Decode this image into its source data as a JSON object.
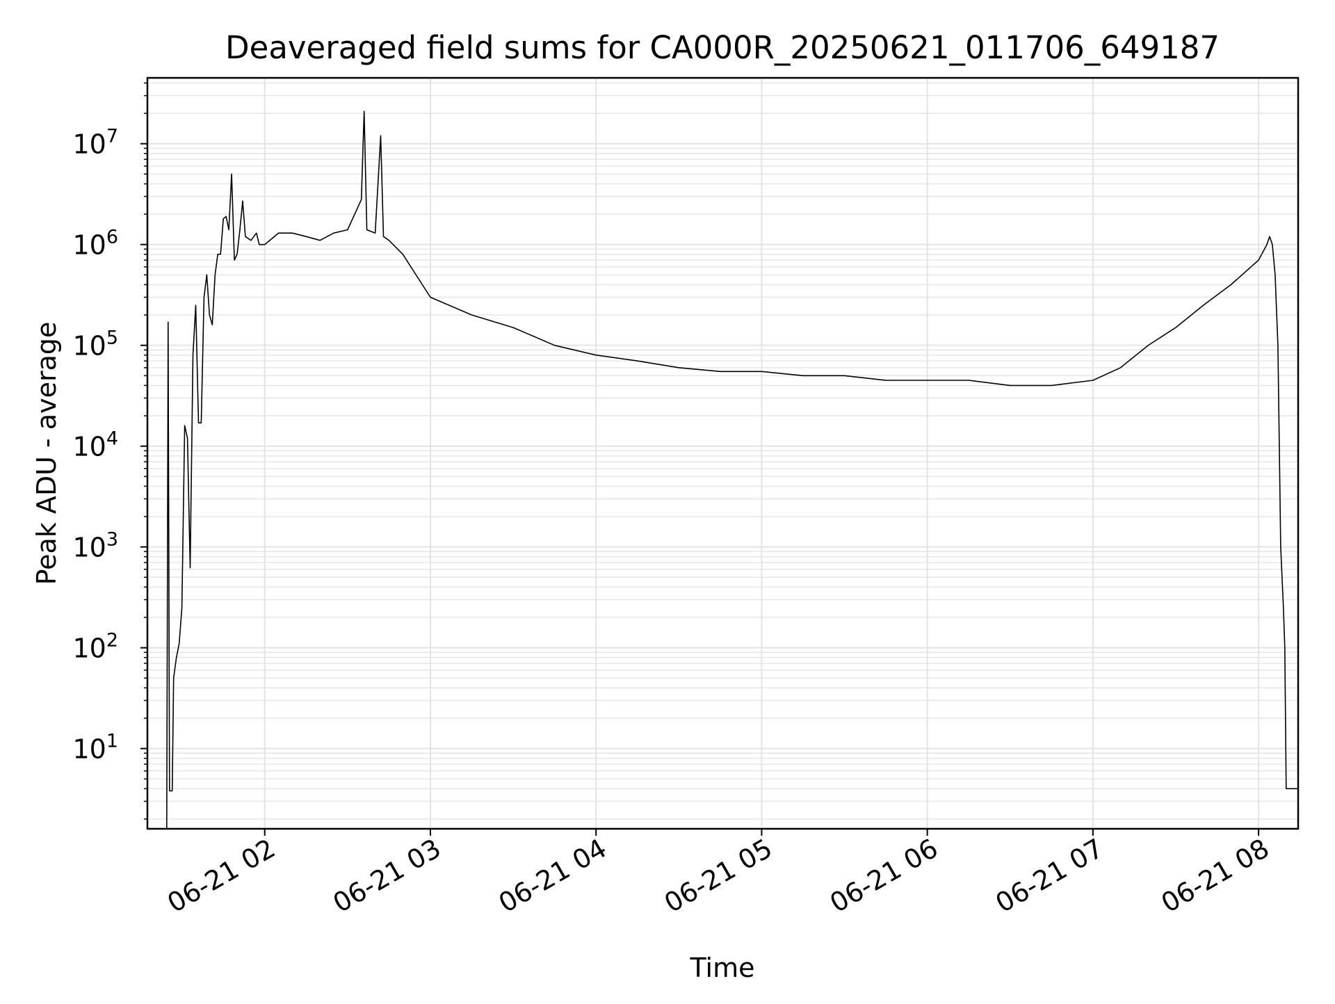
{
  "chart_data": {
    "type": "line",
    "title": "Deaveraged field sums for CA000R_20250621_011706_649187",
    "xlabel": "Time",
    "ylabel": "Peak ADU - average",
    "yscale": "log",
    "ylim": [
      1.6,
      45000000
    ],
    "xlim": [
      "06-21 01:17:30",
      "06-21 08:14:20"
    ],
    "grid": true,
    "line_color": "#000000",
    "x_ticks": [
      {
        "label": "06-21 02",
        "value": "06-21 02:00"
      },
      {
        "label": "06-21 03",
        "value": "06-21 03:00"
      },
      {
        "label": "06-21 04",
        "value": "06-21 04:00"
      },
      {
        "label": "06-21 05",
        "value": "06-21 05:00"
      },
      {
        "label": "06-21 06",
        "value": "06-21 06:00"
      },
      {
        "label": "06-21 07",
        "value": "06-21 07:00"
      },
      {
        "label": "06-21 08",
        "value": "06-21 08:00"
      }
    ],
    "y_ticks": [
      {
        "base": "10",
        "exp": "1",
        "value": 10
      },
      {
        "base": "10",
        "exp": "2",
        "value": 100
      },
      {
        "base": "10",
        "exp": "3",
        "value": 1000
      },
      {
        "base": "10",
        "exp": "4",
        "value": 10000
      },
      {
        "base": "10",
        "exp": "5",
        "value": 100000
      },
      {
        "base": "10",
        "exp": "6",
        "value": 1000000
      },
      {
        "base": "10",
        "exp": "7",
        "value": 10000000
      }
    ],
    "series": [
      {
        "color": "#000000",
        "x": [
          "06-21 01:24:30",
          "06-21 01:25:00",
          "06-21 01:25:30",
          "06-21 01:26:00",
          "06-21 01:26:30",
          "06-21 01:27:00",
          "06-21 01:28:00",
          "06-21 01:29:00",
          "06-21 01:30:00",
          "06-21 01:31:00",
          "06-21 01:32:00",
          "06-21 01:33:00",
          "06-21 01:34:00",
          "06-21 01:35:00",
          "06-21 01:36:00",
          "06-21 01:37:00",
          "06-21 01:38:00",
          "06-21 01:39:00",
          "06-21 01:40:00",
          "06-21 01:41:00",
          "06-21 01:42:00",
          "06-21 01:43:00",
          "06-21 01:44:00",
          "06-21 01:45:00",
          "06-21 01:46:00",
          "06-21 01:47:00",
          "06-21 01:48:00",
          "06-21 01:49:00",
          "06-21 01:50:00",
          "06-21 01:51:00",
          "06-21 01:52:00",
          "06-21 01:53:00",
          "06-21 01:55:00",
          "06-21 01:57:00",
          "06-21 01:58:00",
          "06-21 02:00:00",
          "06-21 02:05:00",
          "06-21 02:10:00",
          "06-21 02:15:00",
          "06-21 02:20:00",
          "06-21 02:25:00",
          "06-21 02:30:00",
          "06-21 02:35:00",
          "06-21 02:36:00",
          "06-21 02:37:00",
          "06-21 02:40:00",
          "06-21 02:42:00",
          "06-21 02:43:00",
          "06-21 02:45:00",
          "06-21 02:50:00",
          "06-21 03:00:00",
          "06-21 03:15:00",
          "06-21 03:30:00",
          "06-21 03:45:00",
          "06-21 04:00:00",
          "06-21 04:15:00",
          "06-21 04:30:00",
          "06-21 04:45:00",
          "06-21 05:00:00",
          "06-21 05:15:00",
          "06-21 05:30:00",
          "06-21 05:45:00",
          "06-21 06:00:00",
          "06-21 06:15:00",
          "06-21 06:30:00",
          "06-21 06:45:00",
          "06-21 07:00:00",
          "06-21 07:10:00",
          "06-21 07:20:00",
          "06-21 07:30:00",
          "06-21 07:40:00",
          "06-21 07:50:00",
          "06-21 08:00:00",
          "06-21 08:03:00",
          "06-21 08:04:00",
          "06-21 08:05:00",
          "06-21 08:06:00",
          "06-21 08:07:00",
          "06-21 08:08:00",
          "06-21 08:09:00",
          "06-21 08:09:30",
          "06-21 08:10:00",
          "06-21 08:11:00",
          "06-21 08:14:00"
        ],
        "y": [
          1.6,
          170000,
          3.8,
          3.8,
          3.8,
          50,
          80,
          110,
          250,
          16000,
          12000,
          620,
          80000,
          250000,
          17000,
          17000,
          300000,
          500000,
          200000,
          160000,
          500000,
          800000,
          800000,
          1800000,
          1900000,
          1400000,
          5000000,
          700000,
          800000,
          1400000,
          2700000,
          1200000,
          1100000,
          1300000,
          1000000,
          1000000,
          1300000,
          1300000,
          1200000,
          1100000,
          1300000,
          1400000,
          2800000,
          21000000,
          1400000,
          1300000,
          12000000,
          1200000,
          1100000,
          800000,
          300000,
          200000,
          150000,
          100000,
          80000,
          70000,
          60000,
          55000,
          55000,
          50000,
          50000,
          45000,
          45000,
          45000,
          40000,
          40000,
          45000,
          60000,
          100000,
          150000,
          250000,
          400000,
          700000,
          1000000,
          1200000,
          1000000,
          500000,
          100000,
          1000,
          250,
          100,
          4,
          4,
          4
        ]
      }
    ]
  }
}
